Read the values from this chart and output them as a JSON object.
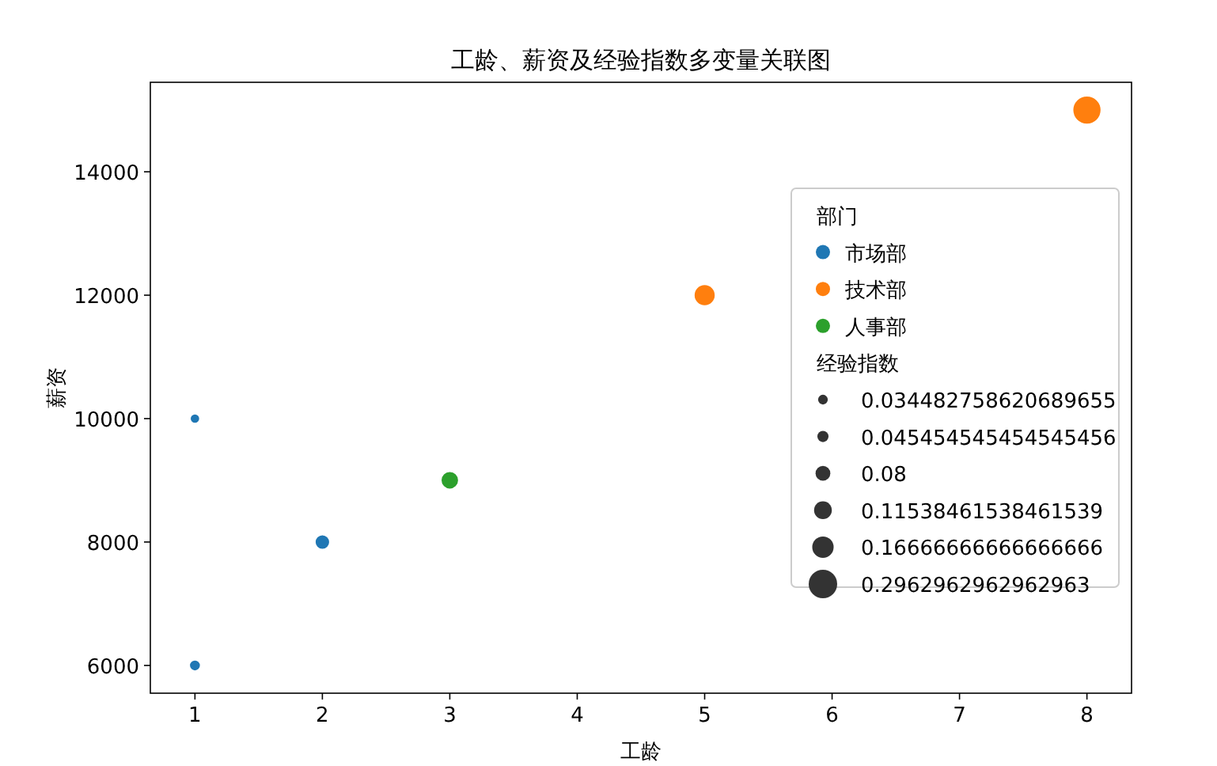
{
  "chart_data": {
    "type": "bubble",
    "title": "工龄、薪资及经验指数多变量关联图",
    "xlabel": "工龄",
    "ylabel": "薪资",
    "legend_title": "部门",
    "series": [
      {
        "name": "市场部",
        "color": "#1f77b4",
        "x": [
          1,
          2,
          1
        ],
        "values": [
          10000,
          8000,
          6000
        ],
        "sizes": [
          0.034482758620689655,
          0.08,
          0.045454545454545456
        ]
      },
      {
        "name": "技术部",
        "color": "#ff7f0e",
        "x": [
          5,
          8
        ],
        "values": [
          12000,
          15000
        ],
        "sizes": [
          0.16666666666666666,
          0.2962962962962963
        ]
      },
      {
        "name": "人事部",
        "color": "#2ca02c",
        "x": [
          3
        ],
        "values": [
          9000
        ],
        "sizes": [
          0.11538461538461539
        ]
      }
    ],
    "size_legend": [
      {
        "value": 0.034482758620689655,
        "label": "0.034482758620689655"
      },
      {
        "value": 0.045454545454545456,
        "label": "0.045454545454545456"
      },
      {
        "value": 0.08,
        "label": "0.08"
      },
      {
        "value": 0.11538461538461539,
        "label": "0.11538461538461539"
      },
      {
        "value": 0.16666666666666666,
        "label": "0.16666666666666666"
      },
      {
        "value": 0.2962962962962963,
        "label": "0.2962962962962963"
      }
    ],
    "annotations": [
      "经验指数"
    ],
    "xlim": [
      0.65,
      8.35
    ],
    "ylim": [
      5550,
      15450
    ],
    "xticks": [
      1,
      2,
      3,
      4,
      5,
      6,
      7,
      8
    ],
    "yticks": [
      6000,
      8000,
      10000,
      12000,
      14000
    ],
    "grid": false,
    "legend": "right"
  }
}
